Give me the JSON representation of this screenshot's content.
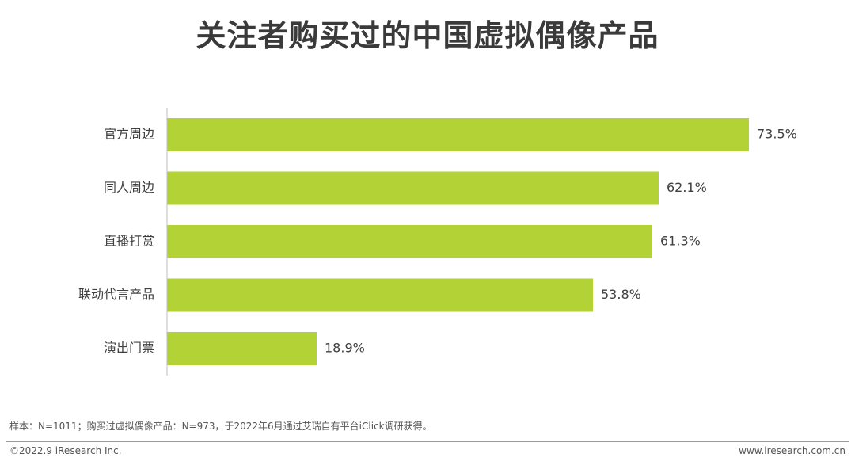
{
  "header": {
    "title": "关注者购买过的中国虚拟偶像产品"
  },
  "footer": {
    "note": "样本：N=1011；购买过虚拟偶像产品：N=973，于2022年6月通过艾瑞自有平台iClick调研获得。",
    "copyright": "©2022.9 iResearch Inc.",
    "website": "www.iresearch.com.cn"
  },
  "chart_data": {
    "type": "bar",
    "orientation": "horizontal",
    "title": "关注者购买过的中国虚拟偶像产品",
    "xlabel": "",
    "ylabel": "",
    "categories": [
      "官方周边",
      "同人周边",
      "直播打赏",
      "联动代言产品",
      "演出门票"
    ],
    "values": [
      73.5,
      62.1,
      61.3,
      53.8,
      18.9
    ],
    "value_labels": [
      "73.5%",
      "62.1%",
      "61.3%",
      "53.8%",
      "18.9%"
    ],
    "unit": "%",
    "xlim": [
      0,
      73.5
    ],
    "grid": false,
    "legend": "none",
    "bar_color": "#b2d235",
    "axis_color": "#bfbfbf"
  }
}
